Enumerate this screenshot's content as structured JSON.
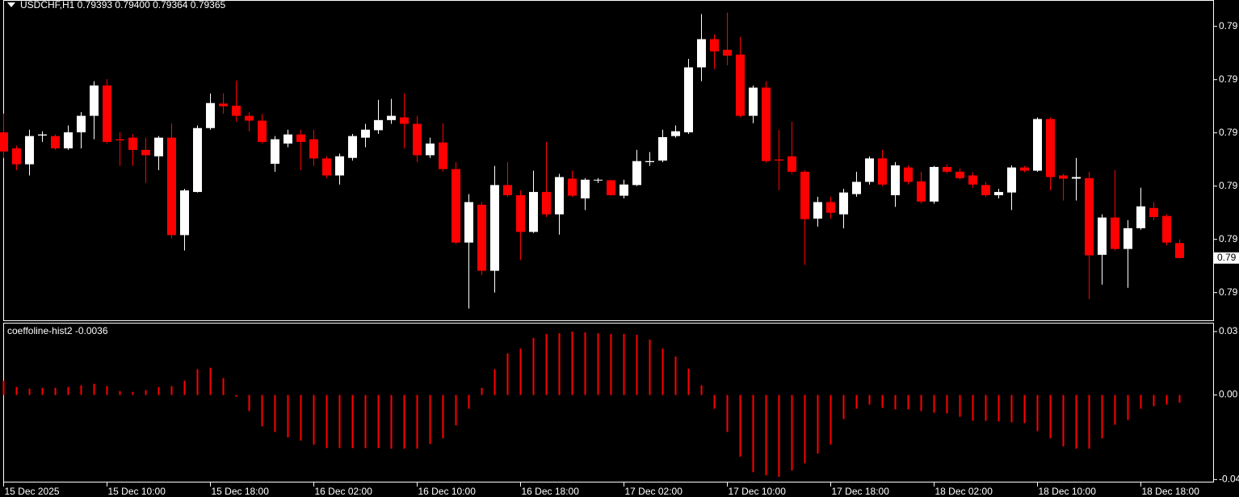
{
  "chart_data": [
    {
      "type": "candlestick",
      "title": "USDCHF,H1  0.79393 0.79400 0.79364 0.79365",
      "up_color": "#ffffff",
      "down_color": "#ff0000",
      "ylim": [
        0.79248,
        0.79848
      ],
      "yticks": [
        {
          "value": 0.798,
          "label": "0.79"
        },
        {
          "value": 0.797,
          "label": "0.79"
        },
        {
          "value": 0.796,
          "label": "0.79"
        },
        {
          "value": 0.795,
          "label": "0.79"
        },
        {
          "value": 0.794,
          "label": "0.79"
        },
        {
          "value": 0.793,
          "label": "0.79"
        }
      ],
      "current_price_label": "0.79",
      "open": [
        0.79601,
        0.79571,
        0.79541,
        0.79595,
        0.79594,
        0.79571,
        0.79601,
        0.79632,
        0.79689,
        0.79588,
        0.79591,
        0.79568,
        0.79556,
        0.79591,
        0.79408,
        0.79489,
        0.79609,
        0.79655,
        0.79651,
        0.79632,
        0.79623,
        0.79542,
        0.7958,
        0.79597,
        0.79588,
        0.79552,
        0.7952,
        0.79553,
        0.79591,
        0.79605,
        0.79624,
        0.79629,
        0.79617,
        0.79558,
        0.79582,
        0.79532,
        0.79394,
        0.79465,
        0.79341,
        0.79502,
        0.79483,
        0.79414,
        0.79489,
        0.79447,
        0.79514,
        0.79477,
        0.79511,
        0.79511,
        0.79482,
        0.79502,
        0.79545,
        0.79548,
        0.79594,
        0.79601,
        0.79723,
        0.79776,
        0.79756,
        0.79747,
        0.79632,
        0.79685,
        0.7955,
        0.79556,
        0.79527,
        0.79439,
        0.7947,
        0.79447,
        0.79485,
        0.79508,
        0.79552,
        0.79483,
        0.79535,
        0.79509,
        0.79471,
        0.79536,
        0.79527,
        0.7952,
        0.79502,
        0.79483,
        0.79488,
        0.79535,
        0.79529,
        0.79626,
        0.7952,
        0.79514,
        0.79515,
        0.79371,
        0.79441,
        0.79382,
        0.79421,
        0.79459,
        0.79444,
        0.79393
      ],
      "high": [
        0.79636,
        0.79576,
        0.79606,
        0.79603,
        0.79597,
        0.79614,
        0.79639,
        0.79697,
        0.79701,
        0.79601,
        0.79598,
        0.79591,
        0.79594,
        0.79618,
        0.79495,
        0.79614,
        0.79674,
        0.79674,
        0.79698,
        0.79639,
        0.79636,
        0.79594,
        0.79606,
        0.79606,
        0.79606,
        0.79556,
        0.79561,
        0.79598,
        0.79617,
        0.79662,
        0.79664,
        0.79674,
        0.79632,
        0.79591,
        0.79618,
        0.79545,
        0.79485,
        0.7947,
        0.79538,
        0.79545,
        0.79492,
        0.79529,
        0.79583,
        0.79523,
        0.79529,
        0.79515,
        0.79515,
        0.79512,
        0.79512,
        0.79568,
        0.79564,
        0.79606,
        0.79614,
        0.79739,
        0.79823,
        0.79785,
        0.79826,
        0.7978,
        0.79689,
        0.79697,
        0.79606,
        0.79621,
        0.7953,
        0.7948,
        0.7948,
        0.79495,
        0.79527,
        0.79556,
        0.79568,
        0.79545,
        0.79539,
        0.79527,
        0.79538,
        0.79541,
        0.79533,
        0.79526,
        0.79508,
        0.79495,
        0.79539,
        0.79538,
        0.79629,
        0.79629,
        0.79523,
        0.79553,
        0.79527,
        0.79447,
        0.7953,
        0.79436,
        0.79497,
        0.7947,
        0.79447,
        0.794
      ],
      "low": [
        0.79553,
        0.7953,
        0.7952,
        0.79583,
        0.79568,
        0.79568,
        0.79571,
        0.79588,
        0.7958,
        0.79538,
        0.79538,
        0.79506,
        0.7953,
        0.79402,
        0.79379,
        0.79488,
        0.79606,
        0.79636,
        0.79621,
        0.79603,
        0.7958,
        0.79527,
        0.79573,
        0.7953,
        0.79538,
        0.79515,
        0.79503,
        0.79548,
        0.79573,
        0.79598,
        0.79617,
        0.79571,
        0.79545,
        0.79553,
        0.79527,
        0.79391,
        0.7927,
        0.79333,
        0.793,
        0.7948,
        0.79361,
        0.79412,
        0.79442,
        0.79409,
        0.79479,
        0.79455,
        0.79506,
        0.79482,
        0.79477,
        0.795,
        0.79538,
        0.79545,
        0.79591,
        0.79598,
        0.79697,
        0.7972,
        0.79727,
        0.79629,
        0.79618,
        0.79544,
        0.79492,
        0.79523,
        0.79352,
        0.79424,
        0.79439,
        0.79421,
        0.7948,
        0.79503,
        0.795,
        0.79461,
        0.79503,
        0.79467,
        0.79467,
        0.79524,
        0.79512,
        0.79497,
        0.7948,
        0.79477,
        0.79455,
        0.79526,
        0.79527,
        0.79492,
        0.79473,
        0.79473,
        0.79288,
        0.79315,
        0.79379,
        0.79309,
        0.79418,
        0.79436,
        0.79389,
        0.79364
      ],
      "close": [
        0.79565,
        0.79541,
        0.79594,
        0.79597,
        0.79571,
        0.79601,
        0.79632,
        0.79689,
        0.79583,
        0.79586,
        0.79568,
        0.79558,
        0.79591,
        0.79408,
        0.79492,
        0.79609,
        0.79656,
        0.7965,
        0.79632,
        0.79623,
        0.79583,
        0.79588,
        0.79597,
        0.79583,
        0.79552,
        0.7952,
        0.79556,
        0.79594,
        0.79606,
        0.79624,
        0.79632,
        0.79617,
        0.79558,
        0.7958,
        0.79532,
        0.79394,
        0.7947,
        0.79341,
        0.79502,
        0.79483,
        0.79414,
        0.79489,
        0.79447,
        0.79517,
        0.79482,
        0.79512,
        0.79512,
        0.79483,
        0.79503,
        0.79547,
        0.79547,
        0.79592,
        0.79603,
        0.79723,
        0.79776,
        0.79753,
        0.79745,
        0.79632,
        0.79685,
        0.79547,
        0.79548,
        0.79527,
        0.79438,
        0.7947,
        0.7945,
        0.79488,
        0.79508,
        0.79552,
        0.79503,
        0.79539,
        0.79508,
        0.79471,
        0.79536,
        0.79527,
        0.79515,
        0.79503,
        0.79483,
        0.79489,
        0.79535,
        0.79529,
        0.79626,
        0.79517,
        0.79514,
        0.79517,
        0.7937,
        0.79441,
        0.79382,
        0.79421,
        0.79462,
        0.79442,
        0.79394,
        0.79365
      ]
    },
    {
      "type": "bar",
      "title": "coeffoline-hist2 -0.0036",
      "color": "#ff0000",
      "ylim": [
        -0.041,
        0.0338
      ],
      "yticks": [
        0.03,
        {
          "value": 0,
          "label": "0.00"
        },
        -0.04
      ],
      "categories": [
        "15 Dec 2025",
        null,
        null,
        null,
        null,
        null,
        null,
        null,
        "15 Dec 10:00",
        null,
        null,
        null,
        null,
        null,
        null,
        null,
        "15 Dec 18:00",
        null,
        null,
        null,
        null,
        null,
        null,
        null,
        "16 Dec 02:00",
        null,
        null,
        null,
        null,
        null,
        null,
        null,
        "16 Dec 10:00",
        null,
        null,
        null,
        null,
        null,
        null,
        null,
        "16 Dec 18:00",
        null,
        null,
        null,
        null,
        null,
        null,
        null,
        "17 Dec 02:00",
        null,
        null,
        null,
        null,
        null,
        null,
        null,
        "17 Dec 10:00",
        null,
        null,
        null,
        null,
        null,
        null,
        null,
        "17 Dec 18:00",
        null,
        null,
        null,
        null,
        null,
        null,
        null,
        "18 Dec 02:00",
        null,
        null,
        null,
        null,
        null,
        null,
        null,
        "18 Dec 10:00",
        null,
        null,
        null,
        null,
        null,
        null,
        null,
        "18 Dec 18:00",
        null,
        null,
        null
      ],
      "values": [
        0.0068,
        0.0038,
        0.003,
        0.0034,
        0.0034,
        0.0038,
        0.0046,
        0.0053,
        0.0042,
        0.0019,
        0.0015,
        0.0023,
        0.0038,
        0.0042,
        0.0068,
        0.0122,
        0.0129,
        0.008,
        -0.0008,
        -0.0076,
        -0.0148,
        -0.0175,
        -0.0201,
        -0.0216,
        -0.0235,
        -0.0251,
        -0.0251,
        -0.0251,
        -0.0251,
        -0.0251,
        -0.0254,
        -0.0254,
        -0.0254,
        -0.0232,
        -0.0205,
        -0.0144,
        -0.0065,
        0.0034,
        0.0122,
        0.0197,
        0.022,
        0.027,
        0.0289,
        0.0292,
        0.03,
        0.0296,
        0.0292,
        0.0289,
        0.0289,
        0.0285,
        0.0262,
        0.022,
        0.0182,
        0.0125,
        0.0046,
        -0.0065,
        -0.0175,
        -0.0292,
        -0.0365,
        -0.038,
        -0.0387,
        -0.0357,
        -0.0323,
        -0.0277,
        -0.0235,
        -0.0114,
        -0.0065,
        -0.0046,
        -0.0061,
        -0.0068,
        -0.0068,
        -0.0076,
        -0.0084,
        -0.0087,
        -0.0103,
        -0.0122,
        -0.0122,
        -0.0125,
        -0.0129,
        -0.0133,
        -0.0171,
        -0.0205,
        -0.0243,
        -0.0254,
        -0.0254,
        -0.0205,
        -0.0141,
        -0.0118,
        -0.0065,
        -0.0053,
        -0.0046,
        -0.0036
      ]
    }
  ]
}
